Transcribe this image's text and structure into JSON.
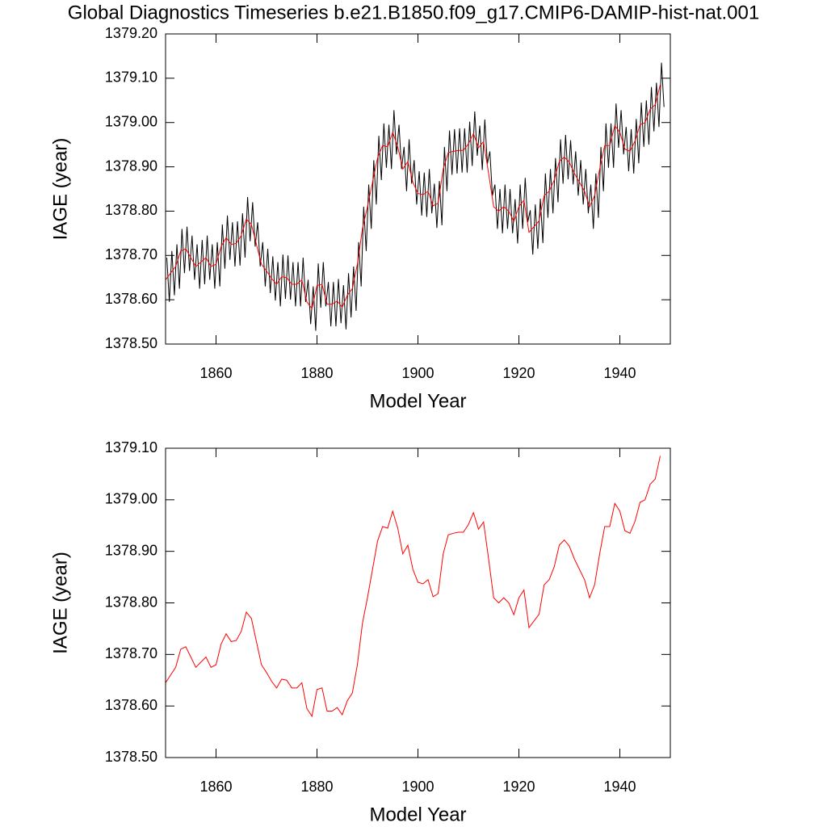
{
  "title": "Global Diagnostics Timeseries b.e21.B1850.f09_g17.CMIP6-DAMIP-hist-nat.001",
  "chart_data": [
    {
      "type": "line",
      "xlabel": "Model Year",
      "ylabel": "IAGE (year)",
      "xlim": [
        1850,
        1950
      ],
      "ylim": [
        1378.5,
        1379.2
      ],
      "xticks": [
        1860,
        1880,
        1900,
        1920,
        1940
      ],
      "yticks": [
        {
          "value": 1378.5,
          "label": "1378.50"
        },
        {
          "value": 1378.6,
          "label": "1378.60"
        },
        {
          "value": 1378.7,
          "label": "1378.70"
        },
        {
          "value": 1378.8,
          "label": "1378.80"
        },
        {
          "value": 1378.9,
          "label": "1378.90"
        },
        {
          "value": 1379.0,
          "label": "1379.00"
        },
        {
          "value": 1379.1,
          "label": "1379.10"
        },
        {
          "value": 1379.2,
          "label": "1379.20"
        }
      ],
      "series": [
        {
          "color": "#000000",
          "x": [
            1850.25,
            1850.75,
            1851.25,
            1851.75,
            1852.25,
            1852.75,
            1853.25,
            1853.75,
            1854.25,
            1854.75,
            1855.25,
            1855.75,
            1856.25,
            1856.75,
            1857.25,
            1857.75,
            1858.25,
            1858.75,
            1859.25,
            1859.75,
            1860.25,
            1860.75,
            1861.25,
            1861.75,
            1862.25,
            1862.75,
            1863.25,
            1863.75,
            1864.25,
            1864.75,
            1865.25,
            1865.75,
            1866.25,
            1866.75,
            1867.25,
            1867.75,
            1868.25,
            1868.75,
            1869.25,
            1869.75,
            1870.25,
            1870.75,
            1871.25,
            1871.75,
            1872.25,
            1872.75,
            1873.25,
            1873.75,
            1874.25,
            1874.75,
            1875.25,
            1875.75,
            1876.25,
            1876.75,
            1877.25,
            1877.75,
            1878.25,
            1878.75,
            1879.25,
            1879.75,
            1880.25,
            1880.75,
            1881.25,
            1881.75,
            1882.25,
            1882.75,
            1883.25,
            1883.75,
            1884.25,
            1884.75,
            1885.25,
            1885.75,
            1886.25,
            1886.75,
            1887.25,
            1887.75,
            1888.25,
            1888.75,
            1889.25,
            1889.75,
            1890.25,
            1890.75,
            1891.25,
            1891.75,
            1892.25,
            1892.75,
            1893.25,
            1893.75,
            1894.25,
            1894.75,
            1895.25,
            1895.75,
            1896.25,
            1896.75,
            1897.25,
            1897.75,
            1898.25,
            1898.75,
            1899.25,
            1899.75,
            1900.25,
            1900.75,
            1901.25,
            1901.75,
            1902.25,
            1902.75,
            1903.25,
            1903.75,
            1904.25,
            1904.75,
            1905.25,
            1905.75,
            1906.25,
            1906.75,
            1907.25,
            1907.75,
            1908.25,
            1908.75,
            1909.25,
            1909.75,
            1910.25,
            1910.75,
            1911.25,
            1911.75,
            1912.25,
            1912.75,
            1913.25,
            1913.75,
            1914.25,
            1914.75,
            1915.25,
            1915.75,
            1916.25,
            1916.75,
            1917.25,
            1917.75,
            1918.25,
            1918.75,
            1919.25,
            1919.75,
            1920.25,
            1920.75,
            1921.25,
            1921.75,
            1922.25,
            1922.75,
            1923.25,
            1923.75,
            1924.25,
            1924.75,
            1925.25,
            1925.75,
            1926.25,
            1926.75,
            1927.25,
            1927.75,
            1928.25,
            1928.75,
            1929.25,
            1929.75,
            1930.25,
            1930.75,
            1931.25,
            1931.75,
            1932.25,
            1932.75,
            1933.25,
            1933.75,
            1934.25,
            1934.75,
            1935.25,
            1935.75,
            1936.25,
            1936.75,
            1937.25,
            1937.75,
            1938.25,
            1938.75,
            1939.25,
            1939.75,
            1940.25,
            1940.75,
            1941.25,
            1941.75,
            1942.25,
            1942.75,
            1943.25,
            1943.75,
            1944.25,
            1944.75,
            1945.25,
            1945.75,
            1946.25,
            1946.75,
            1947.25,
            1947.75,
            1948.25,
            1948.75
          ],
          "values": [
            1378.695,
            1378.595,
            1378.71,
            1378.61,
            1378.725,
            1378.625,
            1378.76,
            1378.66,
            1378.765,
            1378.665,
            1378.745,
            1378.645,
            1378.725,
            1378.625,
            1378.735,
            1378.635,
            1378.745,
            1378.645,
            1378.725,
            1378.625,
            1378.73,
            1378.63,
            1378.77,
            1378.67,
            1378.79,
            1378.69,
            1378.775,
            1378.675,
            1378.777,
            1378.677,
            1378.795,
            1378.695,
            1378.832,
            1378.732,
            1378.82,
            1378.72,
            1378.775,
            1378.675,
            1378.73,
            1378.63,
            1378.715,
            1378.615,
            1378.698,
            1378.598,
            1378.685,
            1378.585,
            1378.702,
            1378.602,
            1378.7,
            1378.6,
            1378.685,
            1378.585,
            1378.685,
            1378.585,
            1378.695,
            1378.595,
            1378.645,
            1378.545,
            1378.63,
            1378.53,
            1378.682,
            1378.582,
            1378.685,
            1378.585,
            1378.64,
            1378.54,
            1378.64,
            1378.54,
            1378.647,
            1378.547,
            1378.633,
            1378.533,
            1378.66,
            1378.56,
            1378.675,
            1378.575,
            1378.73,
            1378.63,
            1378.81,
            1378.71,
            1378.86,
            1378.76,
            1378.915,
            1378.815,
            1378.97,
            1378.87,
            1378.998,
            1378.898,
            1378.995,
            1378.895,
            1379.028,
            1378.928,
            1378.995,
            1378.895,
            1378.945,
            1378.845,
            1378.962,
            1378.862,
            1378.915,
            1378.815,
            1378.89,
            1378.79,
            1378.887,
            1378.787,
            1378.895,
            1378.795,
            1378.862,
            1378.762,
            1378.868,
            1378.768,
            1378.945,
            1378.845,
            1378.982,
            1378.882,
            1378.985,
            1378.885,
            1378.987,
            1378.887,
            1378.987,
            1378.887,
            1379.002,
            1378.902,
            1379.025,
            1378.925,
            1378.993,
            1378.893,
            1379.007,
            1378.907,
            1378.935,
            1378.835,
            1378.86,
            1378.76,
            1378.85,
            1378.75,
            1378.86,
            1378.76,
            1378.85,
            1378.75,
            1378.827,
            1378.727,
            1378.86,
            1378.76,
            1378.875,
            1378.775,
            1378.802,
            1378.702,
            1378.815,
            1378.715,
            1378.828,
            1378.728,
            1378.885,
            1378.785,
            1378.895,
            1378.795,
            1378.92,
            1378.82,
            1378.962,
            1378.862,
            1378.972,
            1378.872,
            1378.96,
            1378.86,
            1378.935,
            1378.835,
            1378.915,
            1378.815,
            1378.895,
            1378.795,
            1378.86,
            1378.76,
            1378.885,
            1378.785,
            1378.945,
            1378.845,
            1378.998,
            1378.898,
            1378.998,
            1378.898,
            1379.043,
            1378.943,
            1379.028,
            1378.928,
            1378.99,
            1378.89,
            1378.985,
            1378.885,
            1379.008,
            1378.908,
            1379.045,
            1378.945,
            1379.05,
            1378.95,
            1379.08,
            1378.98,
            1379.09,
            1378.99,
            1379.135,
            1379.035
          ]
        },
        {
          "color": "#ff0000",
          "x": [
            1850,
            1851,
            1852,
            1853,
            1854,
            1855,
            1856,
            1857,
            1858,
            1859,
            1860,
            1861,
            1862,
            1863,
            1864,
            1865,
            1866,
            1867,
            1868,
            1869,
            1870,
            1871,
            1872,
            1873,
            1874,
            1875,
            1876,
            1877,
            1878,
            1879,
            1880,
            1881,
            1882,
            1883,
            1884,
            1885,
            1886,
            1887,
            1888,
            1889,
            1890,
            1891,
            1892,
            1893,
            1894,
            1895,
            1896,
            1897,
            1898,
            1899,
            1900,
            1901,
            1902,
            1903,
            1904,
            1905,
            1906,
            1907,
            1908,
            1909,
            1910,
            1911,
            1912,
            1913,
            1914,
            1915,
            1916,
            1917,
            1918,
            1919,
            1920,
            1921,
            1922,
            1923,
            1924,
            1925,
            1926,
            1927,
            1928,
            1929,
            1930,
            1931,
            1932,
            1933,
            1934,
            1935,
            1936,
            1937,
            1938,
            1939,
            1940,
            1941,
            1942,
            1943,
            1944,
            1945,
            1946,
            1947,
            1948
          ],
          "values": [
            1378.645,
            1378.66,
            1378.675,
            1378.71,
            1378.715,
            1378.695,
            1378.675,
            1378.685,
            1378.695,
            1378.675,
            1378.68,
            1378.72,
            1378.74,
            1378.725,
            1378.727,
            1378.745,
            1378.782,
            1378.77,
            1378.725,
            1378.68,
            1378.665,
            1378.648,
            1378.635,
            1378.652,
            1378.65,
            1378.635,
            1378.635,
            1378.645,
            1378.595,
            1378.58,
            1378.632,
            1378.635,
            1378.59,
            1378.59,
            1378.597,
            1378.583,
            1378.61,
            1378.625,
            1378.68,
            1378.76,
            1378.81,
            1378.865,
            1378.92,
            1378.948,
            1378.945,
            1378.978,
            1378.945,
            1378.895,
            1378.912,
            1378.865,
            1378.84,
            1378.837,
            1378.845,
            1378.812,
            1378.818,
            1378.895,
            1378.932,
            1378.935,
            1378.937,
            1378.937,
            1378.952,
            1378.975,
            1378.943,
            1378.957,
            1378.885,
            1378.81,
            1378.8,
            1378.81,
            1378.8,
            1378.777,
            1378.81,
            1378.825,
            1378.752,
            1378.765,
            1378.778,
            1378.835,
            1378.845,
            1378.87,
            1378.912,
            1378.922,
            1378.91,
            1378.885,
            1378.865,
            1378.845,
            1378.81,
            1378.835,
            1378.895,
            1378.948,
            1378.948,
            1378.993,
            1378.978,
            1378.94,
            1378.935,
            1378.958,
            1378.995,
            1379.0,
            1379.03,
            1379.04,
            1379.085
          ]
        }
      ]
    },
    {
      "type": "line",
      "xlabel": "Model Year",
      "ylabel": "IAGE (year)",
      "xlim": [
        1850,
        1950
      ],
      "ylim": [
        1378.5,
        1379.1
      ],
      "xticks": [
        1860,
        1880,
        1900,
        1920,
        1940
      ],
      "yticks": [
        {
          "value": 1378.5,
          "label": "1378.50"
        },
        {
          "value": 1378.6,
          "label": "1378.60"
        },
        {
          "value": 1378.7,
          "label": "1378.70"
        },
        {
          "value": 1378.8,
          "label": "1378.80"
        },
        {
          "value": 1378.9,
          "label": "1378.90"
        },
        {
          "value": 1379.0,
          "label": "1379.00"
        },
        {
          "value": 1379.1,
          "label": "1379.10"
        }
      ],
      "series": [
        {
          "color": "#ff0000",
          "x": [
            1850,
            1851,
            1852,
            1853,
            1854,
            1855,
            1856,
            1857,
            1858,
            1859,
            1860,
            1861,
            1862,
            1863,
            1864,
            1865,
            1866,
            1867,
            1868,
            1869,
            1870,
            1871,
            1872,
            1873,
            1874,
            1875,
            1876,
            1877,
            1878,
            1879,
            1880,
            1881,
            1882,
            1883,
            1884,
            1885,
            1886,
            1887,
            1888,
            1889,
            1890,
            1891,
            1892,
            1893,
            1894,
            1895,
            1896,
            1897,
            1898,
            1899,
            1900,
            1901,
            1902,
            1903,
            1904,
            1905,
            1906,
            1907,
            1908,
            1909,
            1910,
            1911,
            1912,
            1913,
            1914,
            1915,
            1916,
            1917,
            1918,
            1919,
            1920,
            1921,
            1922,
            1923,
            1924,
            1925,
            1926,
            1927,
            1928,
            1929,
            1930,
            1931,
            1932,
            1933,
            1934,
            1935,
            1936,
            1937,
            1938,
            1939,
            1940,
            1941,
            1942,
            1943,
            1944,
            1945,
            1946,
            1947,
            1948
          ],
          "values": [
            1378.645,
            1378.66,
            1378.675,
            1378.71,
            1378.715,
            1378.695,
            1378.675,
            1378.685,
            1378.695,
            1378.675,
            1378.68,
            1378.72,
            1378.74,
            1378.725,
            1378.727,
            1378.745,
            1378.782,
            1378.77,
            1378.725,
            1378.68,
            1378.665,
            1378.648,
            1378.635,
            1378.652,
            1378.65,
            1378.635,
            1378.635,
            1378.645,
            1378.595,
            1378.58,
            1378.632,
            1378.635,
            1378.59,
            1378.59,
            1378.597,
            1378.583,
            1378.61,
            1378.625,
            1378.68,
            1378.76,
            1378.81,
            1378.865,
            1378.92,
            1378.948,
            1378.945,
            1378.978,
            1378.945,
            1378.895,
            1378.912,
            1378.865,
            1378.84,
            1378.837,
            1378.845,
            1378.812,
            1378.818,
            1378.895,
            1378.932,
            1378.935,
            1378.937,
            1378.937,
            1378.952,
            1378.975,
            1378.943,
            1378.957,
            1378.885,
            1378.81,
            1378.8,
            1378.81,
            1378.8,
            1378.777,
            1378.81,
            1378.825,
            1378.752,
            1378.765,
            1378.778,
            1378.835,
            1378.845,
            1378.87,
            1378.912,
            1378.922,
            1378.91,
            1378.885,
            1378.865,
            1378.845,
            1378.81,
            1378.835,
            1378.895,
            1378.948,
            1378.948,
            1378.993,
            1378.978,
            1378.94,
            1378.935,
            1378.958,
            1378.995,
            1379.0,
            1379.03,
            1379.04,
            1379.085
          ]
        }
      ]
    }
  ]
}
